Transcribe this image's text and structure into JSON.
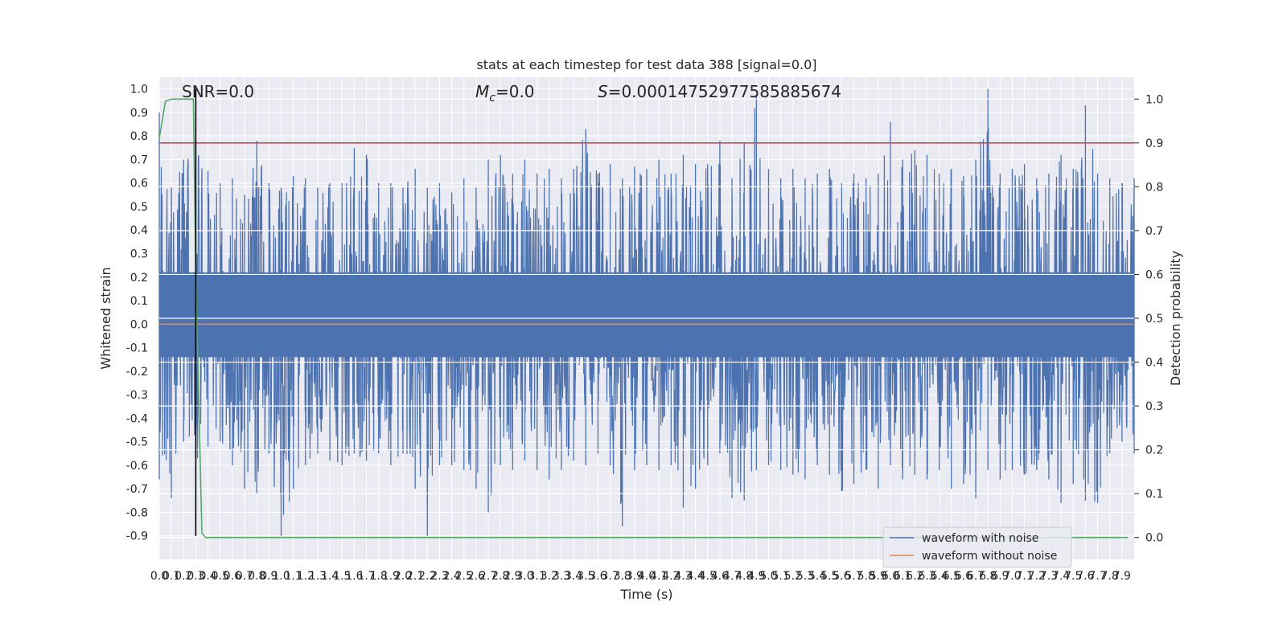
{
  "chart_data": {
    "type": "line",
    "title": "stats at each timestep for test data 388 [signal=0.0]",
    "xlabel": "Time (s)",
    "ylabel": "Whitened strain",
    "y2label": "Detection probability",
    "xlim": [
      0.0,
      8.0
    ],
    "ylim": [
      -1.0,
      1.05
    ],
    "y2lim": [
      -0.05,
      1.05
    ],
    "xticks": [
      "0.0",
      "0.1",
      "0.2",
      "0.3",
      "0.4",
      "0.5",
      "0.6",
      "0.7",
      "0.8",
      "0.9",
      "1.0",
      "1.1",
      "1.2",
      "1.3",
      "1.4",
      "1.5",
      "1.6",
      "1.7",
      "1.8",
      "1.9",
      "2.0",
      "2.1",
      "2.2",
      "2.3",
      "2.4",
      "2.5",
      "2.6",
      "2.7",
      "2.8",
      "2.9",
      "3.0",
      "3.1",
      "3.2",
      "3.3",
      "3.4",
      "3.5",
      "3.6",
      "3.7",
      "3.8",
      "3.9",
      "4.0",
      "4.1",
      "4.2",
      "4.3",
      "4.4",
      "4.5",
      "4.6",
      "4.7",
      "4.8",
      "4.9",
      "5.0",
      "5.1",
      "5.2",
      "5.3",
      "5.4",
      "5.5",
      "5.6",
      "5.7",
      "5.8",
      "5.9",
      "6.0",
      "6.1",
      "6.2",
      "6.3",
      "6.4",
      "6.5",
      "6.6",
      "6.7",
      "6.8",
      "6.9",
      "7.0",
      "7.1",
      "7.2",
      "7.3",
      "7.4",
      "7.5",
      "7.6",
      "7.7",
      "7.8",
      "7.9"
    ],
    "yticks": [
      "1.0",
      "0.9",
      "0.8",
      "0.7",
      "0.6",
      "0.5",
      "0.4",
      "0.3",
      "0.2",
      "0.1",
      "0.0",
      "-0.1",
      "-0.2",
      "-0.3",
      "-0.4",
      "-0.5",
      "-0.6",
      "-0.7",
      "-0.8",
      "-0.9"
    ],
    "y2ticks": [
      "1.0",
      "0.9",
      "0.8",
      "0.7",
      "0.6",
      "0.5",
      "0.4",
      "0.3",
      "0.2",
      "0.1",
      "0.0"
    ],
    "grid": true,
    "annotations": {
      "snr": "SNR=0.0",
      "mc_symbol": "M",
      "mc_sub": "c",
      "mc_value": "=0.0",
      "s_symbol": "S",
      "s_value": "=0.00014752977585885674"
    },
    "series": [
      {
        "name": "waveform with noise",
        "color": "#4c72b0",
        "note": "noise envelope sampled every 0.1 s; dense noise between bounds",
        "x": [
          0.0,
          0.1,
          0.2,
          0.3,
          0.4,
          0.5,
          0.6,
          0.7,
          0.8,
          0.9,
          1.0,
          1.1,
          1.2,
          1.3,
          1.4,
          1.5,
          1.6,
          1.7,
          1.8,
          1.9,
          2.0,
          2.1,
          2.2,
          2.3,
          2.4,
          2.5,
          2.6,
          2.7,
          2.8,
          2.9,
          3.0,
          3.1,
          3.2,
          3.3,
          3.4,
          3.5,
          3.6,
          3.7,
          3.8,
          3.9,
          4.0,
          4.1,
          4.2,
          4.3,
          4.4,
          4.5,
          4.6,
          4.7,
          4.8,
          4.9,
          5.0,
          5.1,
          5.2,
          5.3,
          5.4,
          5.5,
          5.6,
          5.7,
          5.8,
          5.9,
          6.0,
          6.1,
          6.2,
          6.3,
          6.4,
          6.5,
          6.6,
          6.7,
          6.8,
          6.9,
          7.0,
          7.1,
          7.2,
          7.3,
          7.4,
          7.5,
          7.6,
          7.7,
          7.8,
          7.9,
          8.0
        ],
        "upper": [
          0.9,
          0.58,
          0.7,
          0.78,
          0.65,
          0.6,
          0.62,
          0.55,
          0.78,
          0.6,
          0.58,
          0.63,
          0.62,
          0.58,
          0.6,
          0.6,
          0.75,
          0.72,
          0.6,
          0.6,
          0.58,
          0.66,
          0.58,
          0.6,
          0.56,
          0.62,
          0.58,
          0.7,
          0.72,
          0.64,
          0.7,
          0.64,
          0.66,
          0.62,
          0.66,
          0.83,
          0.64,
          0.68,
          0.62,
          0.67,
          0.66,
          0.7,
          0.64,
          0.72,
          0.68,
          0.68,
          0.78,
          0.62,
          0.77,
          0.97,
          0.66,
          0.62,
          0.66,
          0.62,
          0.64,
          0.66,
          0.6,
          0.64,
          0.62,
          0.64,
          0.86,
          0.7,
          0.74,
          0.72,
          0.64,
          0.66,
          0.63,
          0.7,
          1.0,
          0.64,
          0.66,
          0.68,
          0.62,
          0.64,
          0.72,
          0.66,
          0.93,
          0.64,
          0.62,
          0.6,
          0.62
        ],
        "lower": [
          -0.66,
          -0.74,
          -0.5,
          -0.58,
          -0.52,
          -0.5,
          -0.6,
          -0.7,
          -0.72,
          -0.55,
          -0.9,
          -0.7,
          -0.6,
          -0.55,
          -0.58,
          -0.6,
          -0.55,
          -0.58,
          -0.55,
          -0.6,
          -0.55,
          -0.7,
          -0.9,
          -0.6,
          -0.6,
          -0.62,
          -0.7,
          -0.8,
          -0.6,
          -0.62,
          -0.58,
          -0.62,
          -0.66,
          -0.62,
          -0.58,
          -0.6,
          -0.55,
          -0.6,
          -0.86,
          -0.62,
          -0.6,
          -0.62,
          -0.6,
          -0.78,
          -0.7,
          -0.6,
          -0.55,
          -0.74,
          -0.75,
          -0.62,
          -0.6,
          -0.62,
          -0.64,
          -0.66,
          -0.6,
          -0.64,
          -0.71,
          -0.68,
          -0.62,
          -0.7,
          -0.6,
          -0.66,
          -0.64,
          -0.66,
          -0.62,
          -0.7,
          -0.68,
          -0.74,
          -0.62,
          -0.66,
          -0.62,
          -0.64,
          -0.62,
          -0.66,
          -0.76,
          -0.68,
          -0.75,
          -0.76,
          -0.55,
          -0.5,
          -0.55
        ]
      },
      {
        "name": "waveform without noise",
        "color": "#dd8452",
        "x": [
          0.0,
          8.0
        ],
        "y": [
          0.0,
          0.0
        ]
      },
      {
        "axis": "right",
        "color": "#55a868",
        "x": [
          0.0,
          0.03,
          0.05,
          0.1,
          0.2,
          0.25,
          0.28,
          0.3,
          0.35,
          0.38,
          0.42,
          1.0,
          7.95
        ],
        "y": [
          0.91,
          0.96,
          0.995,
          1.0,
          1.0,
          1.0,
          1.0,
          0.6,
          0.01,
          0.0,
          0.0,
          0.0,
          0.0
        ]
      },
      {
        "axis": "right",
        "color": "#c44e52",
        "x": [
          0.0,
          8.0
        ],
        "y": [
          0.9,
          0.9
        ]
      },
      {
        "color": "#000000",
        "x": [
          0.3,
          0.3
        ],
        "y": [
          -0.9,
          1.0
        ]
      }
    ],
    "legend_position": "lower right",
    "legend": [
      {
        "label": "waveform with noise",
        "color": "#4c72b0"
      },
      {
        "label": "waveform without noise",
        "color": "#dd8452"
      }
    ]
  }
}
